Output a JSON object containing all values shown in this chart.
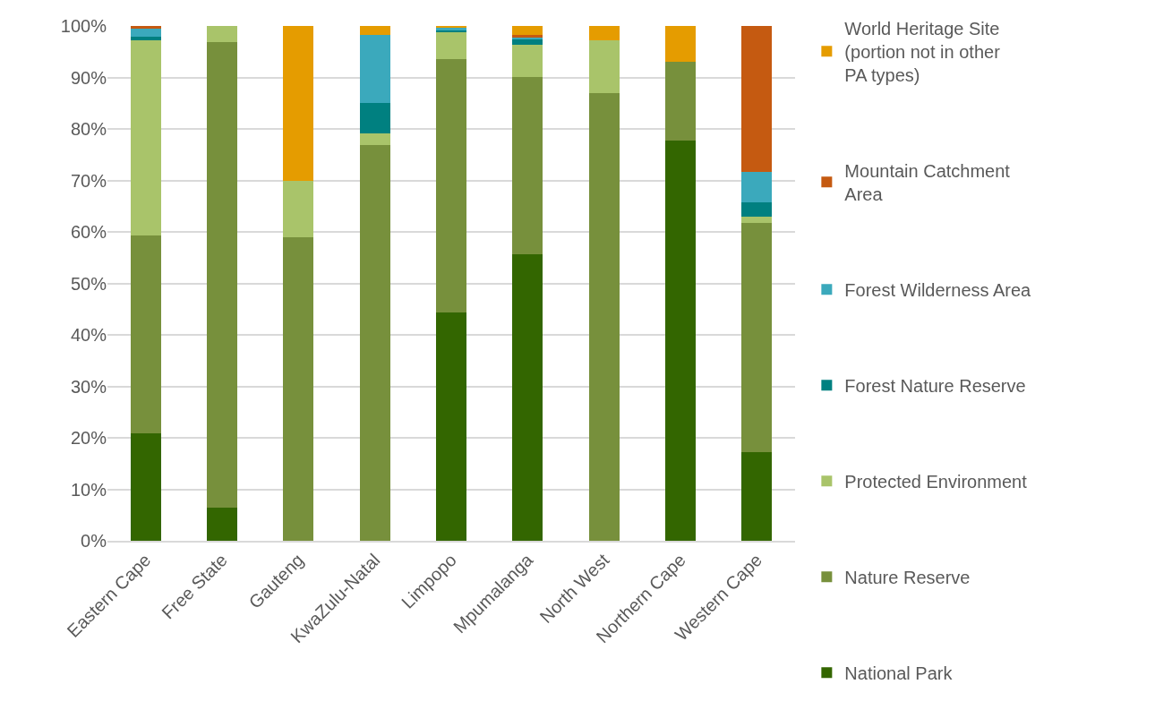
{
  "chart_data": {
    "type": "bar",
    "stacked": true,
    "categories": [
      "Eastern Cape",
      "Free State",
      "Gauteng",
      "KwaZulu-Natal",
      "Limpopo",
      "Mpumalanga",
      "North West",
      "Northern Cape",
      "Western Cape"
    ],
    "series": [
      {
        "name": "National Park",
        "color": "#336600",
        "values": [
          20.9,
          6.5,
          0,
          0,
          44.3,
          55.7,
          0,
          77.7,
          17.2
        ]
      },
      {
        "name": "Nature Reserve",
        "color": "#77903c",
        "values": [
          38.4,
          90.4,
          59.0,
          76.8,
          49.3,
          34.4,
          87.0,
          15.3,
          44.6
        ]
      },
      {
        "name": "Protected Environment",
        "color": "#a9c46a",
        "values": [
          38.0,
          3.1,
          11.0,
          2.3,
          5.3,
          6.3,
          10.3,
          0,
          1.1
        ]
      },
      {
        "name": "Forest Nature Reserve",
        "color": "#008080",
        "values": [
          0.7,
          0,
          0,
          6.0,
          0.2,
          1.0,
          0,
          0,
          2.8
        ]
      },
      {
        "name": "Forest Wilderness Area",
        "color": "#3ba9bc",
        "values": [
          1.5,
          0,
          0,
          13.2,
          0.7,
          0.5,
          0,
          0,
          5.9
        ]
      },
      {
        "name": "Mountain Catchment Area",
        "color": "#c55a11",
        "values": [
          0.5,
          0,
          0,
          0,
          0,
          0.3,
          0,
          0,
          28.4
        ]
      },
      {
        "name": "World Heritage Site (portion not in other PA types)",
        "color": "#e59c00",
        "values": [
          0,
          0,
          30.0,
          1.7,
          0.2,
          2.0,
          2.7,
          7.0,
          0
        ]
      }
    ],
    "ylim": [
      0,
      100
    ],
    "yticks": [
      {
        "value": 0,
        "label": "0%"
      },
      {
        "value": 10,
        "label": "10%"
      },
      {
        "value": 20,
        "label": "20%"
      },
      {
        "value": 30,
        "label": "30%"
      },
      {
        "value": 40,
        "label": "40%"
      },
      {
        "value": 50,
        "label": "50%"
      },
      {
        "value": 60,
        "label": "60%"
      },
      {
        "value": 70,
        "label": "70%"
      },
      {
        "value": 80,
        "label": "80%"
      },
      {
        "value": 90,
        "label": "90%"
      },
      {
        "value": 100,
        "label": "100%"
      }
    ],
    "grid": "y",
    "legend": "right"
  }
}
